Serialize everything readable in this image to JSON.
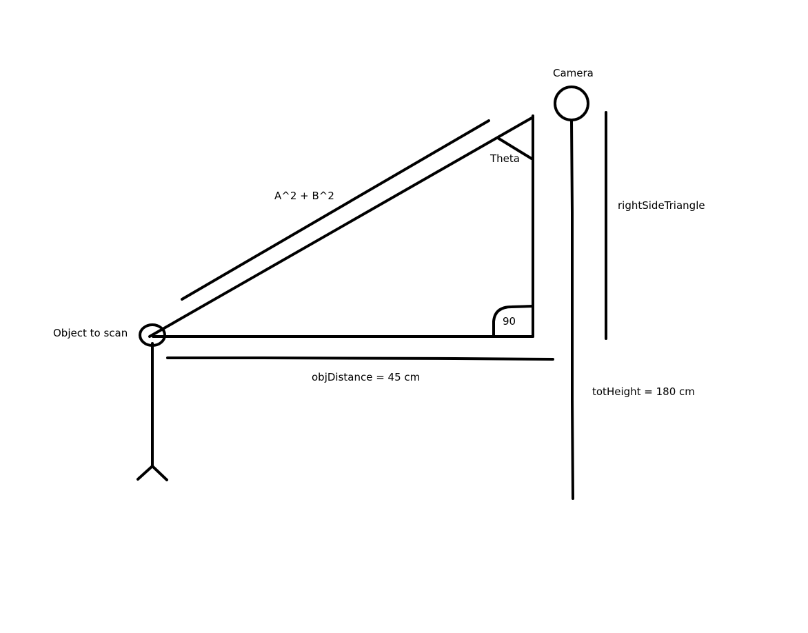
{
  "labels": {
    "camera": "Camera",
    "theta": "Theta",
    "hypotenuse": "A^2 + B^2",
    "right_side": "rightSideTriangle",
    "object": "Object to scan",
    "right_angle": "90",
    "obj_distance": "objDistance = 45 cm",
    "tot_height": "totHeight = 180 cm"
  },
  "colors": {
    "stroke": "#000000",
    "background": "#ffffff"
  }
}
